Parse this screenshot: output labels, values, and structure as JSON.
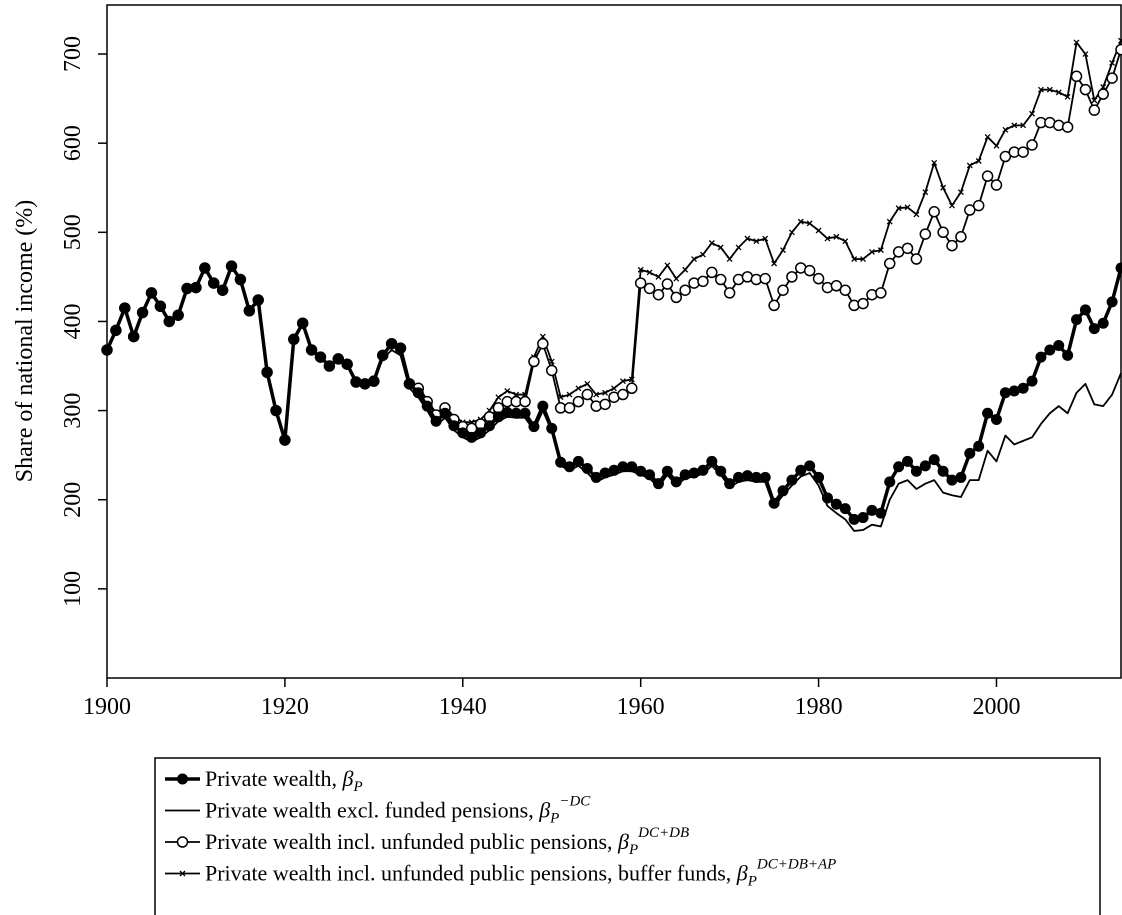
{
  "chart_data": {
    "type": "line",
    "y_label": "Share of national income (%)",
    "x": [
      1900,
      1901,
      1902,
      1903,
      1904,
      1905,
      1906,
      1907,
      1908,
      1909,
      1910,
      1911,
      1912,
      1913,
      1914,
      1915,
      1916,
      1917,
      1918,
      1919,
      1920,
      1921,
      1922,
      1923,
      1924,
      1925,
      1926,
      1927,
      1928,
      1929,
      1930,
      1931,
      1932,
      1933,
      1934,
      1935,
      1936,
      1937,
      1938,
      1939,
      1940,
      1941,
      1942,
      1943,
      1944,
      1945,
      1946,
      1947,
      1948,
      1949,
      1950,
      1951,
      1952,
      1953,
      1954,
      1955,
      1956,
      1957,
      1958,
      1959,
      1960,
      1961,
      1962,
      1963,
      1964,
      1965,
      1966,
      1967,
      1968,
      1969,
      1970,
      1971,
      1972,
      1973,
      1974,
      1975,
      1976,
      1977,
      1978,
      1979,
      1980,
      1981,
      1982,
      1983,
      1984,
      1985,
      1986,
      1987,
      1988,
      1989,
      1990,
      1991,
      1992,
      1993,
      1994,
      1995,
      1996,
      1997,
      1998,
      1999,
      2000,
      2001,
      2002,
      2003,
      2004,
      2005,
      2006,
      2007,
      2008,
      2009,
      2010,
      2011,
      2012,
      2013,
      2014
    ],
    "series": [
      {
        "name": "Private wealth, ",
        "symbol": "β",
        "sub": "P",
        "color": "#000000",
        "line_width": 3.5,
        "marker": "filled-circle",
        "values": [
          368,
          390,
          415,
          383,
          410,
          432,
          417,
          400,
          407,
          437,
          438,
          460,
          443,
          435,
          462,
          447,
          412,
          424,
          343,
          300,
          267,
          380,
          398,
          368,
          360,
          350,
          358,
          352,
          332,
          330,
          333,
          362,
          375,
          370,
          330,
          320,
          305,
          288,
          297,
          283,
          275,
          270,
          275,
          283,
          293,
          298,
          297,
          297,
          282,
          305,
          280,
          242,
          237,
          243,
          235,
          225,
          230,
          233,
          237,
          237,
          232,
          228,
          218,
          232,
          220,
          228,
          230,
          233,
          243,
          232,
          218,
          225,
          227,
          225,
          225,
          196,
          210,
          222,
          233,
          238,
          225,
          202,
          195,
          190,
          178,
          180,
          188,
          185,
          220,
          237,
          243,
          232,
          238,
          245,
          232,
          222,
          225,
          252,
          260,
          297,
          290,
          320,
          322,
          325,
          333,
          360,
          368,
          373,
          362,
          402,
          413,
          392,
          398,
          422,
          460
        ]
      },
      {
        "name": "Private wealth excl. funded pensions, ",
        "symbol": "β",
        "sub": "P",
        "sup": "−DC",
        "color": "#000000",
        "line_width": 1.8,
        "marker": "none",
        "values": [
          368,
          390,
          415,
          383,
          410,
          432,
          417,
          400,
          407,
          437,
          438,
          460,
          443,
          435,
          462,
          447,
          412,
          424,
          343,
          300,
          267,
          380,
          398,
          368,
          360,
          350,
          358,
          352,
          332,
          330,
          333,
          358,
          368,
          362,
          325,
          315,
          300,
          283,
          292,
          278,
          270,
          265,
          270,
          278,
          288,
          293,
          292,
          292,
          278,
          300,
          277,
          238,
          233,
          238,
          230,
          220,
          225,
          228,
          232,
          232,
          228,
          224,
          214,
          228,
          216,
          224,
          226,
          229,
          238,
          228,
          214,
          220,
          222,
          220,
          220,
          192,
          205,
          216,
          226,
          230,
          216,
          193,
          185,
          178,
          165,
          166,
          172,
          170,
          200,
          218,
          222,
          212,
          218,
          222,
          208,
          205,
          203,
          222,
          222,
          255,
          243,
          272,
          262,
          266,
          270,
          285,
          297,
          305,
          297,
          320,
          330,
          307,
          305,
          318,
          342
        ]
      },
      {
        "name": "Private wealth incl. unfunded public pensions, ",
        "symbol": "β",
        "sub": "P",
        "sup": "DC+DB",
        "color": "#000000",
        "line_width": 1.8,
        "marker": "open-circle",
        "values": [
          368,
          390,
          415,
          383,
          410,
          432,
          417,
          400,
          407,
          437,
          438,
          460,
          443,
          435,
          462,
          447,
          412,
          424,
          343,
          300,
          267,
          380,
          398,
          368,
          360,
          350,
          358,
          352,
          332,
          330,
          333,
          362,
          375,
          370,
          330,
          325,
          310,
          295,
          303,
          290,
          282,
          280,
          285,
          293,
          303,
          310,
          310,
          310,
          355,
          375,
          345,
          303,
          303,
          310,
          318,
          305,
          307,
          315,
          318,
          325,
          443,
          437,
          430,
          442,
          427,
          435,
          443,
          445,
          455,
          447,
          432,
          447,
          450,
          447,
          448,
          418,
          435,
          450,
          460,
          457,
          448,
          438,
          440,
          435,
          418,
          420,
          430,
          432,
          465,
          478,
          482,
          470,
          498,
          523,
          500,
          485,
          495,
          525,
          530,
          563,
          553,
          585,
          590,
          590,
          598,
          623,
          623,
          620,
          618,
          675,
          660,
          637,
          655,
          673,
          705
        ]
      },
      {
        "name": "Private wealth incl. unfunded public pensions, buffer funds, ",
        "symbol": "β",
        "sub": "P",
        "sup": "DC+DB+AP",
        "color": "#000000",
        "line_width": 1.8,
        "marker": "x",
        "values": [
          368,
          390,
          415,
          383,
          410,
          432,
          417,
          400,
          407,
          437,
          438,
          460,
          443,
          435,
          462,
          447,
          412,
          424,
          343,
          300,
          267,
          380,
          398,
          368,
          360,
          350,
          358,
          352,
          332,
          330,
          333,
          362,
          375,
          370,
          330,
          327,
          312,
          297,
          305,
          293,
          287,
          287,
          290,
          300,
          315,
          322,
          318,
          318,
          360,
          383,
          355,
          315,
          318,
          325,
          330,
          318,
          320,
          325,
          333,
          335,
          458,
          455,
          450,
          463,
          448,
          458,
          470,
          475,
          488,
          483,
          470,
          483,
          493,
          490,
          493,
          465,
          480,
          500,
          512,
          510,
          502,
          493,
          495,
          490,
          470,
          470,
          478,
          480,
          512,
          527,
          528,
          520,
          545,
          578,
          550,
          530,
          545,
          575,
          580,
          607,
          597,
          615,
          620,
          620,
          633,
          660,
          660,
          657,
          652,
          713,
          700,
          648,
          663,
          690,
          715
        ]
      }
    ],
    "xlim": [
      1900,
      2014
    ],
    "xticks": [
      1900,
      1920,
      1940,
      1960,
      1980,
      2000
    ],
    "ylim": [
      0,
      755
    ],
    "yticks": [
      100,
      200,
      300,
      400,
      500,
      600,
      700
    ]
  }
}
